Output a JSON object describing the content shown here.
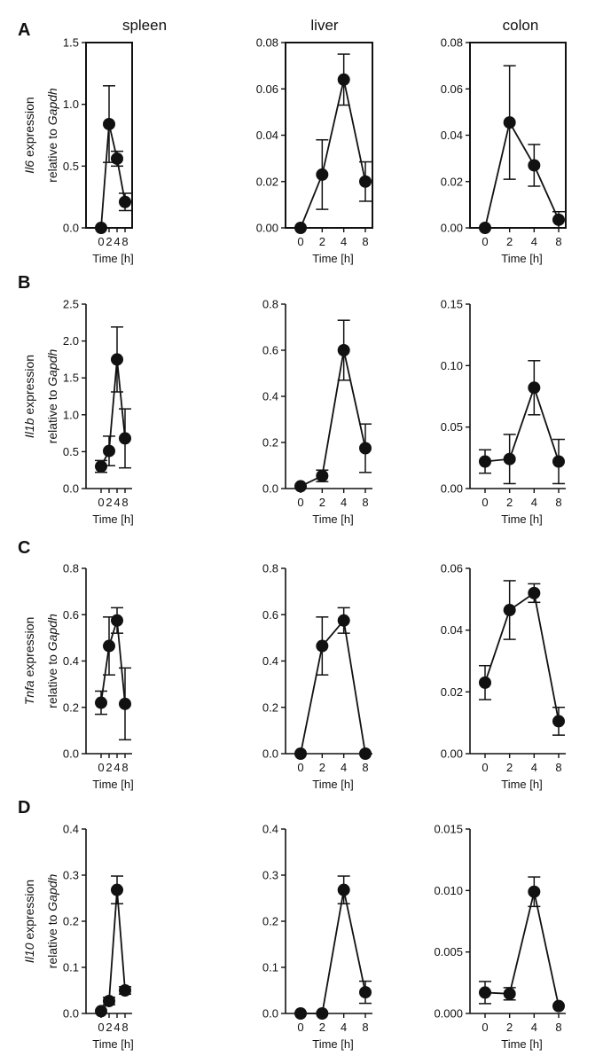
{
  "figure": {
    "columns": [
      "spleen",
      "liver",
      "colon"
    ],
    "rows": [
      {
        "letter": "A",
        "gene": "Il6"
      },
      {
        "letter": "B",
        "gene": "Il1b"
      },
      {
        "letter": "C",
        "gene": "Tnfa"
      },
      {
        "letter": "D",
        "gene": "Il10"
      }
    ],
    "y_title_suffix": " expression",
    "y_title_line2_prefix": "relative to ",
    "y_title_reference_gene": "Gapdh"
  },
  "chart_data": [
    {
      "type": "line",
      "row": "A",
      "column": "spleen",
      "categories": [
        "0",
        "2",
        "4",
        "8"
      ],
      "values": [
        0.0,
        0.84,
        0.56,
        0.21
      ],
      "errors": [
        0.0,
        0.31,
        0.06,
        0.07
      ],
      "yticks": [
        "0.0",
        "0.5",
        "1.0",
        "1.5"
      ],
      "ylim": [
        0,
        1.5
      ],
      "xlabel": "Time [h]",
      "ylabel": "Il6 expression relative to Gapdh"
    },
    {
      "type": "line",
      "row": "A",
      "column": "liver",
      "categories": [
        "0",
        "2",
        "4",
        "8"
      ],
      "values": [
        0.0,
        0.023,
        0.064,
        0.02
      ],
      "errors": [
        0.0,
        0.015,
        0.011,
        0.0085
      ],
      "yticks": [
        "0.00",
        "0.02",
        "0.04",
        "0.06",
        "0.08"
      ],
      "ylim": [
        0,
        0.08
      ],
      "xlabel": "Time [h]",
      "ylabel": ""
    },
    {
      "type": "line",
      "row": "A",
      "column": "colon",
      "categories": [
        "0",
        "2",
        "4",
        "8"
      ],
      "values": [
        0.0,
        0.0455,
        0.027,
        0.0035
      ],
      "errors": [
        0.0,
        0.0245,
        0.009,
        0.0035
      ],
      "yticks": [
        "0.00",
        "0.02",
        "0.04",
        "0.06",
        "0.08"
      ],
      "ylim": [
        0,
        0.08
      ],
      "xlabel": "Time [h]",
      "ylabel": ""
    },
    {
      "type": "line",
      "row": "B",
      "column": "spleen",
      "categories": [
        "0",
        "2",
        "4",
        "8"
      ],
      "values": [
        0.3,
        0.51,
        1.75,
        0.68
      ],
      "errors": [
        0.08,
        0.2,
        0.44,
        0.4
      ],
      "yticks": [
        "0.0",
        "0.5",
        "1.0",
        "1.5",
        "2.0",
        "2.5"
      ],
      "ylim": [
        0,
        2.5
      ],
      "xlabel": "Time [h]",
      "ylabel": "Il1b expression relative to Gapdh"
    },
    {
      "type": "line",
      "row": "B",
      "column": "liver",
      "categories": [
        "0",
        "2",
        "4",
        "8"
      ],
      "values": [
        0.01,
        0.055,
        0.6,
        0.175
      ],
      "errors": [
        0.0,
        0.025,
        0.13,
        0.105
      ],
      "yticks": [
        "0.0",
        "0.2",
        "0.4",
        "0.6",
        "0.8"
      ],
      "ylim": [
        0,
        0.8
      ],
      "xlabel": "Time [h]",
      "ylabel": ""
    },
    {
      "type": "line",
      "row": "B",
      "column": "colon",
      "categories": [
        "0",
        "2",
        "4",
        "8"
      ],
      "values": [
        0.022,
        0.024,
        0.082,
        0.022
      ],
      "errors": [
        0.0095,
        0.02,
        0.022,
        0.018
      ],
      "yticks": [
        "0.00",
        "0.05",
        "0.10",
        "0.15"
      ],
      "ylim": [
        0,
        0.15
      ],
      "xlabel": "Time [h]",
      "ylabel": ""
    },
    {
      "type": "line",
      "row": "C",
      "column": "spleen",
      "categories": [
        "0",
        "2",
        "4",
        "8"
      ],
      "values": [
        0.22,
        0.465,
        0.575,
        0.215
      ],
      "errors": [
        0.05,
        0.125,
        0.055,
        0.155
      ],
      "yticks": [
        "0.0",
        "0.2",
        "0.4",
        "0.6",
        "0.8"
      ],
      "ylim": [
        0,
        0.8
      ],
      "xlabel": "Time [h]",
      "ylabel": "Tnfa expression relative to Gapdh"
    },
    {
      "type": "line",
      "row": "C",
      "column": "liver",
      "categories": [
        "0",
        "2",
        "4",
        "8"
      ],
      "values": [
        0.0,
        0.465,
        0.575,
        0.0
      ],
      "errors": [
        0.0,
        0.125,
        0.055,
        0.0
      ],
      "yticks": [
        "0.0",
        "0.2",
        "0.4",
        "0.6",
        "0.8"
      ],
      "ylim": [
        0,
        0.8
      ],
      "xlabel": "Time [h]",
      "ylabel": ""
    },
    {
      "type": "line",
      "row": "C",
      "column": "colon",
      "categories": [
        "0",
        "2",
        "4",
        "8"
      ],
      "values": [
        0.023,
        0.0465,
        0.052,
        0.0105
      ],
      "errors": [
        0.0055,
        0.0095,
        0.003,
        0.0045
      ],
      "yticks": [
        "0.00",
        "0.02",
        "0.04",
        "0.06"
      ],
      "ylim": [
        0,
        0.06
      ],
      "xlabel": "Time [h]",
      "ylabel": ""
    },
    {
      "type": "line",
      "row": "D",
      "column": "spleen",
      "categories": [
        "0",
        "2",
        "4",
        "8"
      ],
      "values": [
        0.005,
        0.027,
        0.268,
        0.05
      ],
      "errors": [
        0.0,
        0.008,
        0.03,
        0.008
      ],
      "yticks": [
        "0.0",
        "0.1",
        "0.2",
        "0.3",
        "0.4"
      ],
      "ylim": [
        0,
        0.4
      ],
      "xlabel": "Time [h]",
      "ylabel": "Il10 expression relative to Gapdh"
    },
    {
      "type": "line",
      "row": "D",
      "column": "liver",
      "categories": [
        "0",
        "2",
        "4",
        "8"
      ],
      "values": [
        0.0,
        0.0,
        0.268,
        0.046
      ],
      "errors": [
        0.0,
        0.0,
        0.03,
        0.024
      ],
      "yticks": [
        "0.0",
        "0.1",
        "0.2",
        "0.3",
        "0.4"
      ],
      "ylim": [
        0,
        0.4
      ],
      "xlabel": "Time [h]",
      "ylabel": ""
    },
    {
      "type": "line",
      "row": "D",
      "column": "colon",
      "categories": [
        "0",
        "2",
        "4",
        "8"
      ],
      "values": [
        0.0017,
        0.0016,
        0.0099,
        0.0006
      ],
      "errors": [
        0.0009,
        0.0005,
        0.0012,
        0.0
      ],
      "yticks": [
        "0.000",
        "0.005",
        "0.010",
        "0.015"
      ],
      "ylim": [
        0,
        0.015
      ],
      "xlabel": "Time [h]",
      "ylabel": ""
    }
  ]
}
